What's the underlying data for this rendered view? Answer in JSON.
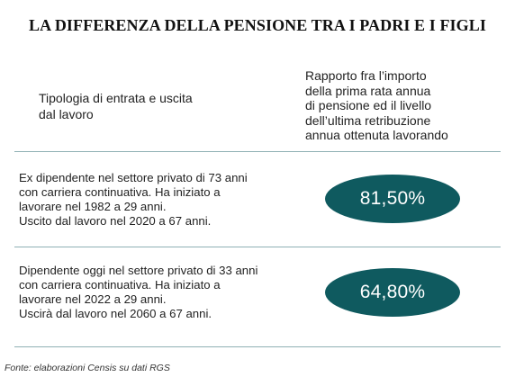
{
  "title": "LA DIFFERENZA DELLA PENSIONE TRA I PADRI E I FIGLI",
  "header": {
    "left_lines": [
      "Tipologia di entrata e uscita",
      "dal lavoro"
    ],
    "right_lines": [
      "Rapporto fra l’importo",
      "della prima rata annua",
      "di pensione ed il livello",
      "dell’ultima retribuzione",
      "annua ottenuta lavorando"
    ]
  },
  "rows": [
    {
      "lines": [
        "Ex dipendente nel settore privato di 73 anni",
        "con carriera continuativa. Ha iniziato a",
        "lavorare nel 1982 a 29 anni.",
        "Uscito dal lavoro nel 2020 a 67 anni."
      ],
      "value_label": "81,50%"
    },
    {
      "lines": [
        "Dipendente oggi nel settore privato di 33 anni",
        "con carriera continuativa. Ha iniziato a",
        "lavorare nel 2022 a 29 anni.",
        "Uscirà dal lavoro nel 2060 a 67 anni."
      ],
      "value_label": "64,80%"
    }
  ],
  "source": "Fonte: elaborazioni Censis su dati RGS",
  "colors": {
    "accent": "#0f5a5f",
    "rule": "#8fb0b4"
  },
  "chart_data": {
    "type": "table",
    "title": "LA DIFFERENZA DELLA PENSIONE TRA I PADRI E I FIGLI",
    "columns": [
      "Tipologia di entrata e uscita dal lavoro",
      "Rapporto fra l’importo della prima rata annua di pensione ed il livello dell’ultima retribuzione annua ottenuta lavorando"
    ],
    "values": [
      81.5,
      64.8
    ]
  }
}
